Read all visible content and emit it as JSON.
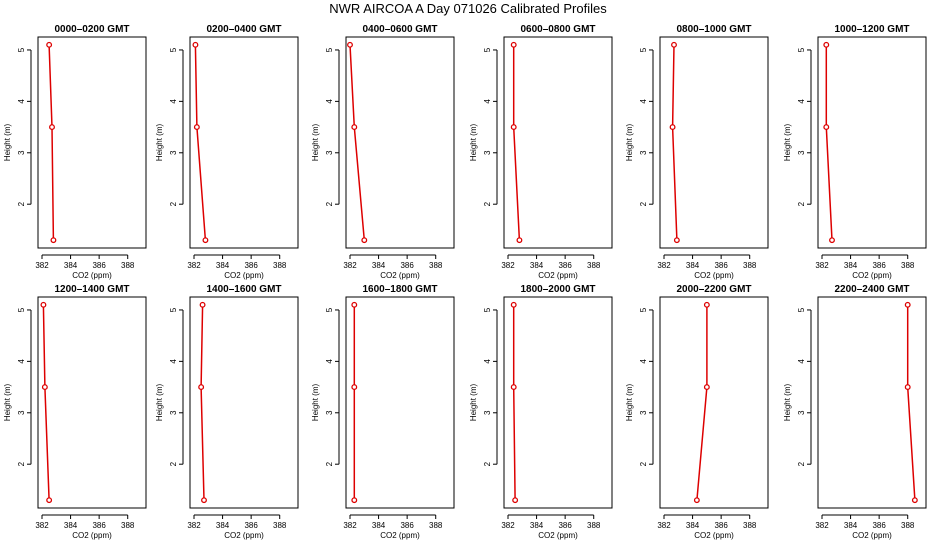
{
  "title": "NWR AIRCOA A  Day 071026  Calibrated Profiles",
  "styles": {
    "line_color": "#dd0000",
    "axis_color": "#000000",
    "background": "#ffffff"
  },
  "chart_data": [
    {
      "type": "line",
      "title": "0000–0200 GMT",
      "xlabel": "CO2 (ppm)",
      "ylabel": "Height (m)",
      "xlim": [
        382,
        389
      ],
      "ylim": [
        1.3,
        5.1
      ],
      "xticks": [
        382,
        384,
        386,
        388
      ],
      "xtick_labels": [
        "382",
        "384",
        "386",
        "388"
      ],
      "yticks": [
        2,
        3,
        4,
        5
      ],
      "ytick_labels": [
        "2",
        "3",
        "4",
        "5"
      ],
      "series": [
        {
          "x": [
            382.5,
            382.7,
            382.8
          ],
          "y": [
            5.1,
            3.5,
            1.3
          ]
        }
      ]
    },
    {
      "type": "line",
      "title": "0200–0400 GMT",
      "xlabel": "CO2 (ppm)",
      "ylabel": "Height (m)",
      "xlim": [
        382,
        389
      ],
      "ylim": [
        1.3,
        5.1
      ],
      "xticks": [
        382,
        384,
        386,
        388
      ],
      "xtick_labels": [
        "382",
        "384",
        "386",
        "388"
      ],
      "yticks": [
        2,
        3,
        4,
        5
      ],
      "ytick_labels": [
        "2",
        "3",
        "4",
        "5"
      ],
      "series": [
        {
          "x": [
            382.1,
            382.2,
            382.8
          ],
          "y": [
            5.1,
            3.5,
            1.3
          ]
        }
      ]
    },
    {
      "type": "line",
      "title": "0400–0600 GMT",
      "xlabel": "CO2 (ppm)",
      "ylabel": "Height (m)",
      "xlim": [
        382,
        389
      ],
      "ylim": [
        1.3,
        5.1
      ],
      "xticks": [
        382,
        384,
        386,
        388
      ],
      "xtick_labels": [
        "382",
        "384",
        "386",
        "388"
      ],
      "yticks": [
        2,
        3,
        4,
        5
      ],
      "ytick_labels": [
        "2",
        "3",
        "4",
        "5"
      ],
      "series": [
        {
          "x": [
            382.0,
            382.3,
            383.0
          ],
          "y": [
            5.1,
            3.5,
            1.3
          ]
        }
      ]
    },
    {
      "type": "line",
      "title": "0600–0800 GMT",
      "xlabel": "CO2 (ppm)",
      "ylabel": "Height (m)",
      "xlim": [
        382,
        389
      ],
      "ylim": [
        1.3,
        5.1
      ],
      "xticks": [
        382,
        384,
        386,
        388
      ],
      "xtick_labels": [
        "382",
        "384",
        "386",
        "388"
      ],
      "yticks": [
        2,
        3,
        4,
        5
      ],
      "ytick_labels": [
        "2",
        "3",
        "4",
        "5"
      ],
      "series": [
        {
          "x": [
            382.4,
            382.4,
            382.8
          ],
          "y": [
            5.1,
            3.5,
            1.3
          ]
        }
      ]
    },
    {
      "type": "line",
      "title": "0800–1000 GMT",
      "xlabel": "CO2 (ppm)",
      "ylabel": "Height (m)",
      "xlim": [
        382,
        389
      ],
      "ylim": [
        1.3,
        5.1
      ],
      "xticks": [
        382,
        384,
        386,
        388
      ],
      "xtick_labels": [
        "382",
        "384",
        "386",
        "388"
      ],
      "yticks": [
        2,
        3,
        4,
        5
      ],
      "ytick_labels": [
        "2",
        "3",
        "4",
        "5"
      ],
      "series": [
        {
          "x": [
            382.7,
            382.6,
            382.9
          ],
          "y": [
            5.1,
            3.5,
            1.3
          ]
        }
      ]
    },
    {
      "type": "line",
      "title": "1000–1200 GMT",
      "xlabel": "CO2 (ppm)",
      "ylabel": "Height (m)",
      "xlim": [
        382,
        389
      ],
      "ylim": [
        1.3,
        5.1
      ],
      "xticks": [
        382,
        384,
        386,
        388
      ],
      "xtick_labels": [
        "382",
        "384",
        "386",
        "388"
      ],
      "yticks": [
        2,
        3,
        4,
        5
      ],
      "ytick_labels": [
        "2",
        "3",
        "4",
        "5"
      ],
      "series": [
        {
          "x": [
            382.3,
            382.3,
            382.7
          ],
          "y": [
            5.1,
            3.5,
            1.3
          ]
        }
      ]
    },
    {
      "type": "line",
      "title": "1200–1400 GMT",
      "xlabel": "CO2 (ppm)",
      "ylabel": "Height (m)",
      "xlim": [
        382,
        389
      ],
      "ylim": [
        1.3,
        5.1
      ],
      "xticks": [
        382,
        384,
        386,
        388
      ],
      "xtick_labels": [
        "382",
        "384",
        "386",
        "388"
      ],
      "yticks": [
        2,
        3,
        4,
        5
      ],
      "ytick_labels": [
        "2",
        "3",
        "4",
        "5"
      ],
      "series": [
        {
          "x": [
            382.1,
            382.2,
            382.5
          ],
          "y": [
            5.1,
            3.5,
            1.3
          ]
        }
      ]
    },
    {
      "type": "line",
      "title": "1400–1600 GMT",
      "xlabel": "CO2 (ppm)",
      "ylabel": "Height (m)",
      "xlim": [
        382,
        389
      ],
      "ylim": [
        1.3,
        5.1
      ],
      "xticks": [
        382,
        384,
        386,
        388
      ],
      "xtick_labels": [
        "382",
        "384",
        "386",
        "388"
      ],
      "yticks": [
        2,
        3,
        4,
        5
      ],
      "ytick_labels": [
        "2",
        "3",
        "4",
        "5"
      ],
      "series": [
        {
          "x": [
            382.6,
            382.5,
            382.7
          ],
          "y": [
            5.1,
            3.5,
            1.3
          ]
        }
      ]
    },
    {
      "type": "line",
      "title": "1600–1800 GMT",
      "xlabel": "CO2 (ppm)",
      "ylabel": "Height (m)",
      "xlim": [
        382,
        389
      ],
      "ylim": [
        1.3,
        5.1
      ],
      "xticks": [
        382,
        384,
        386,
        388
      ],
      "xtick_labels": [
        "382",
        "384",
        "386",
        "388"
      ],
      "yticks": [
        2,
        3,
        4,
        5
      ],
      "ytick_labels": [
        "2",
        "3",
        "4",
        "5"
      ],
      "series": [
        {
          "x": [
            382.3,
            382.3,
            382.3
          ],
          "y": [
            5.1,
            3.5,
            1.3
          ]
        }
      ]
    },
    {
      "type": "line",
      "title": "1800–2000 GMT",
      "xlabel": "CO2 (ppm)",
      "ylabel": "Height (m)",
      "xlim": [
        382,
        389
      ],
      "ylim": [
        1.3,
        5.1
      ],
      "xticks": [
        382,
        384,
        386,
        388
      ],
      "xtick_labels": [
        "382",
        "384",
        "386",
        "388"
      ],
      "yticks": [
        2,
        3,
        4,
        5
      ],
      "ytick_labels": [
        "2",
        "3",
        "4",
        "5"
      ],
      "series": [
        {
          "x": [
            382.4,
            382.4,
            382.5
          ],
          "y": [
            5.1,
            3.5,
            1.3
          ]
        }
      ]
    },
    {
      "type": "line",
      "title": "2000–2200 GMT",
      "xlabel": "CO2 (ppm)",
      "ylabel": "Height (m)",
      "xlim": [
        382,
        389
      ],
      "ylim": [
        1.3,
        5.1
      ],
      "xticks": [
        382,
        384,
        386,
        388
      ],
      "xtick_labels": [
        "382",
        "384",
        "386",
        "388"
      ],
      "yticks": [
        2,
        3,
        4,
        5
      ],
      "ytick_labels": [
        "2",
        "3",
        "4",
        "5"
      ],
      "series": [
        {
          "x": [
            385.0,
            385.0,
            384.3
          ],
          "y": [
            5.1,
            3.5,
            1.3
          ]
        }
      ]
    },
    {
      "type": "line",
      "title": "2200–2400 GMT",
      "xlabel": "CO2 (ppm)",
      "ylabel": "Height (m)",
      "xlim": [
        382,
        389
      ],
      "ylim": [
        1.3,
        5.1
      ],
      "xticks": [
        382,
        384,
        386,
        388
      ],
      "xtick_labels": [
        "382",
        "384",
        "386",
        "388"
      ],
      "yticks": [
        2,
        3,
        4,
        5
      ],
      "ytick_labels": [
        "2",
        "3",
        "4",
        "5"
      ],
      "series": [
        {
          "x": [
            388.0,
            388.0,
            388.5
          ],
          "y": [
            5.1,
            3.5,
            1.3
          ]
        }
      ]
    }
  ]
}
